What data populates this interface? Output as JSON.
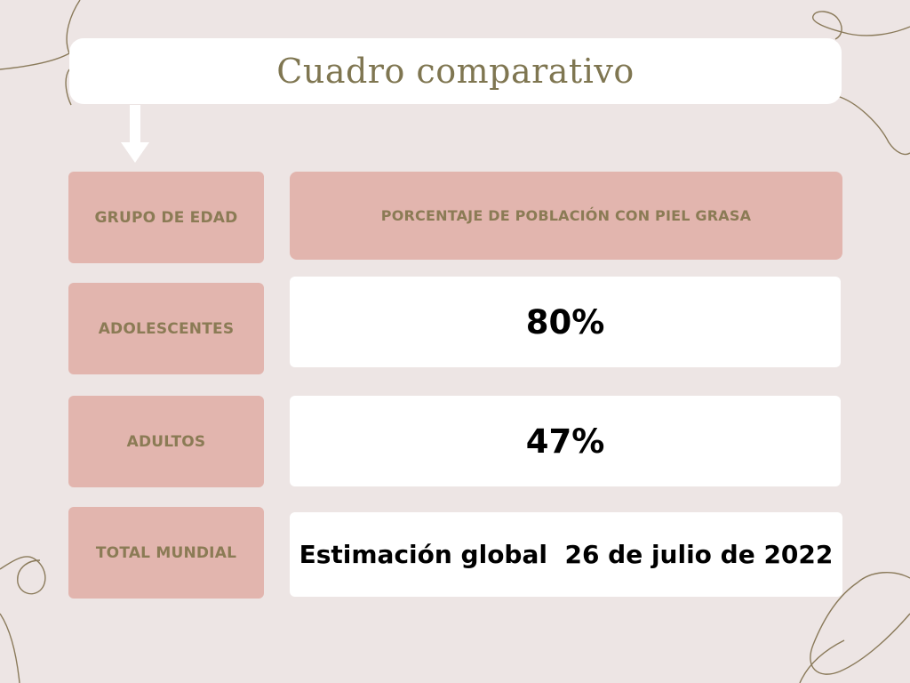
{
  "title": "Cuadro comparativo",
  "table": {
    "header": {
      "group_label": "GRUPO DE EDAD",
      "value_label": "PORCENTAJE DE POBLACIÓN CON PIEL GRASA"
    },
    "rows": [
      {
        "group": "ADOLESCENTES",
        "value": "80%"
      },
      {
        "group": "ADULTOS",
        "value": "47%"
      },
      {
        "group": "TOTAL MUNDIAL",
        "value": "Estimación global  26 de julio de 2022"
      }
    ]
  },
  "colors": {
    "background": "#ede5e4",
    "label_fill": "#e2b5ae",
    "label_text": "#8b7b55",
    "title_text": "#7f7651",
    "value_fill": "#ffffff",
    "value_text": "#000000",
    "decor_lines": "#8a7a5a"
  },
  "icons": [
    "down-arrow-icon"
  ]
}
